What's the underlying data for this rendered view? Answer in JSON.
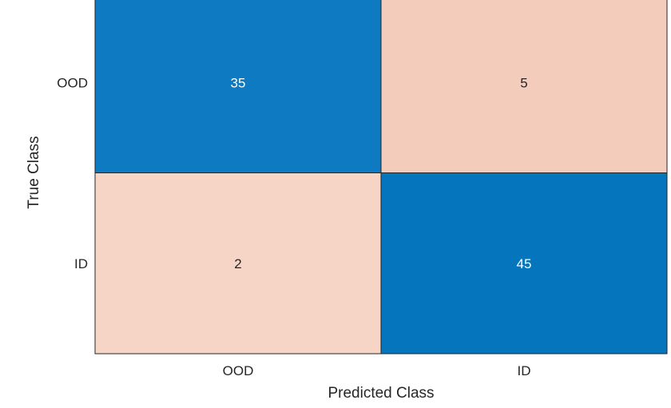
{
  "chart_data": {
    "type": "heatmap",
    "title": "",
    "xlabel": "Predicted Class",
    "ylabel": "True Class",
    "x_categories": [
      "OOD",
      "ID"
    ],
    "y_categories": [
      "OOD",
      "ID"
    ],
    "values": [
      [
        35,
        5
      ],
      [
        2,
        45
      ]
    ],
    "color_scale": {
      "diagonal": {
        "light": "#ffffff",
        "dark": "#0072bd"
      },
      "off_diagonal": {
        "light": "#ffffff",
        "dark": "#d95319"
      }
    },
    "text_colors": {
      "dark_cell": "#ffffff",
      "light_cell": "#262626"
    },
    "grid": true,
    "legend": "none"
  }
}
